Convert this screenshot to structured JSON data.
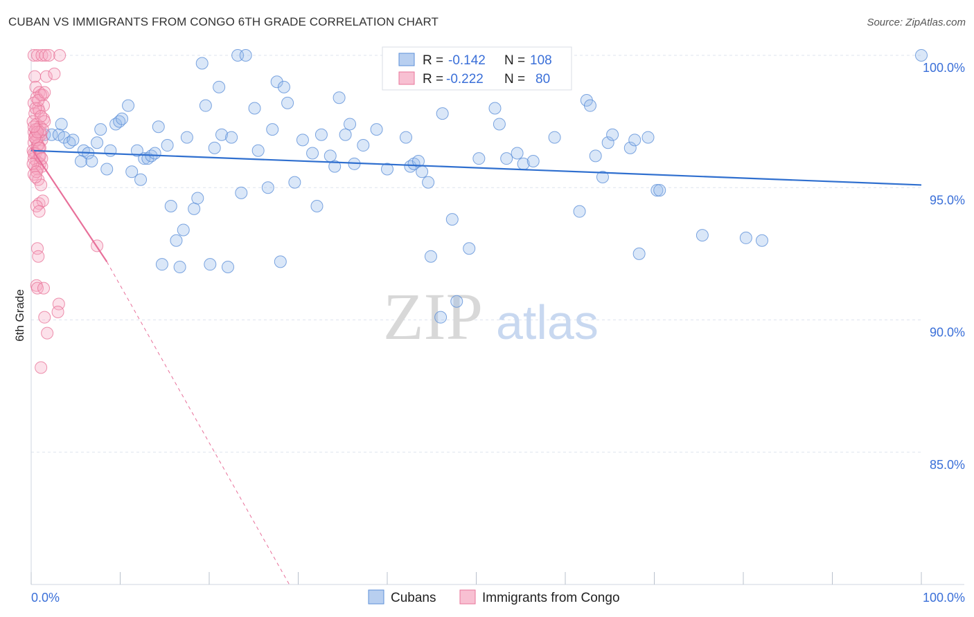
{
  "header": {
    "title": "CUBAN VS IMMIGRANTS FROM CONGO 6TH GRADE CORRELATION CHART",
    "source": "Source: ZipAtlas.com"
  },
  "watermark": {
    "zip": "ZIP",
    "atlas": "atlas"
  },
  "colors": {
    "cubans": "#5b8fd8",
    "cubans_fill": "rgba(150,185,235,0.35)",
    "congo": "#e8759a",
    "congo_fill": "rgba(245,170,195,0.35)",
    "blue_line": "#2f6fcf",
    "pink_line": "#e8709a",
    "grid": "#dde3ee",
    "tick_text": "#3a6fd8"
  },
  "chart_data": {
    "type": "scatter",
    "title": "CUBAN VS IMMIGRANTS FROM CONGO 6TH GRADE CORRELATION CHART",
    "xlabel": "",
    "ylabel": "6th Grade",
    "xlim": [
      0,
      100
    ],
    "ylim": [
      80,
      100
    ],
    "x_tick_labels": [
      "0.0%",
      "100.0%"
    ],
    "y_ticks": [
      85,
      90,
      95,
      100
    ],
    "y_tick_labels": [
      "85.0%",
      "90.0%",
      "95.0%",
      "100.0%"
    ],
    "grid": true,
    "legend_position": "top-center",
    "legend": [
      {
        "name": "Cubans",
        "r_label": "R =",
        "r": "-0.142",
        "n_label": "N =",
        "n": "108"
      },
      {
        "name": "Immigrants from Congo",
        "r_label": "R =",
        "r": "-0.222",
        "n_label": "N =",
        "n": "80"
      }
    ],
    "series": [
      {
        "name": "Cubans",
        "trend": {
          "x": [
            0,
            100
          ],
          "y": [
            96.4,
            95.1
          ],
          "style": "solid"
        },
        "points": [
          [
            1.5,
            97.0
          ],
          [
            2.3,
            97.0
          ],
          [
            3.1,
            97.0
          ],
          [
            3.4,
            97.4
          ],
          [
            3.7,
            96.9
          ],
          [
            4.3,
            96.7
          ],
          [
            4.7,
            96.8
          ],
          [
            5.6,
            96.0
          ],
          [
            5.9,
            96.4
          ],
          [
            6.4,
            96.3
          ],
          [
            6.8,
            96.0
          ],
          [
            7.4,
            96.7
          ],
          [
            7.8,
            97.2
          ],
          [
            8.5,
            95.7
          ],
          [
            8.9,
            96.4
          ],
          [
            9.5,
            97.4
          ],
          [
            9.9,
            97.5
          ],
          [
            10.2,
            97.6
          ],
          [
            10.9,
            98.1
          ],
          [
            11.3,
            95.6
          ],
          [
            11.9,
            96.4
          ],
          [
            12.3,
            95.3
          ],
          [
            12.7,
            96.1
          ],
          [
            13.1,
            96.1
          ],
          [
            13.5,
            96.2
          ],
          [
            13.9,
            96.3
          ],
          [
            14.3,
            97.3
          ],
          [
            14.7,
            92.1
          ],
          [
            15.3,
            96.6
          ],
          [
            15.7,
            94.3
          ],
          [
            16.3,
            93.0
          ],
          [
            16.7,
            92.0
          ],
          [
            17.1,
            93.4
          ],
          [
            17.5,
            96.9
          ],
          [
            18.3,
            94.2
          ],
          [
            18.7,
            94.6
          ],
          [
            19.2,
            99.7
          ],
          [
            19.6,
            98.1
          ],
          [
            20.1,
            92.1
          ],
          [
            20.6,
            96.5
          ],
          [
            21.1,
            98.8
          ],
          [
            21.4,
            97.0
          ],
          [
            22.1,
            92.0
          ],
          [
            22.5,
            96.9
          ],
          [
            23.2,
            100.0
          ],
          [
            23.6,
            94.8
          ],
          [
            24.1,
            100.0
          ],
          [
            25.1,
            98.0
          ],
          [
            25.5,
            96.4
          ],
          [
            26.6,
            95.0
          ],
          [
            27.1,
            97.2
          ],
          [
            27.6,
            99.0
          ],
          [
            28.0,
            92.2
          ],
          [
            28.4,
            98.8
          ],
          [
            28.8,
            98.2
          ],
          [
            29.6,
            95.2
          ],
          [
            30.5,
            96.8
          ],
          [
            31.6,
            96.3
          ],
          [
            32.1,
            94.3
          ],
          [
            32.6,
            97.0
          ],
          [
            33.6,
            96.2
          ],
          [
            34.1,
            95.8
          ],
          [
            34.6,
            98.4
          ],
          [
            35.3,
            97.0
          ],
          [
            35.8,
            97.4
          ],
          [
            36.3,
            95.9
          ],
          [
            37.3,
            96.6
          ],
          [
            38.8,
            97.2
          ],
          [
            40.0,
            95.7
          ],
          [
            42.1,
            96.9
          ],
          [
            42.6,
            95.8
          ],
          [
            43.0,
            95.9
          ],
          [
            43.5,
            96.0
          ],
          [
            43.9,
            95.6
          ],
          [
            44.6,
            95.2
          ],
          [
            44.9,
            92.4
          ],
          [
            46.0,
            90.1
          ],
          [
            46.2,
            97.8
          ],
          [
            47.3,
            93.8
          ],
          [
            47.8,
            90.7
          ],
          [
            49.2,
            92.7
          ],
          [
            50.3,
            96.1
          ],
          [
            52.1,
            98.0
          ],
          [
            52.6,
            97.4
          ],
          [
            53.4,
            96.1
          ],
          [
            54.6,
            96.3
          ],
          [
            55.3,
            95.9
          ],
          [
            56.4,
            96.0
          ],
          [
            58.8,
            96.9
          ],
          [
            61.6,
            94.1
          ],
          [
            62.4,
            98.3
          ],
          [
            62.8,
            98.1
          ],
          [
            63.4,
            96.2
          ],
          [
            64.2,
            95.4
          ],
          [
            64.8,
            96.7
          ],
          [
            65.3,
            97.0
          ],
          [
            67.3,
            96.5
          ],
          [
            67.8,
            96.8
          ],
          [
            68.3,
            92.5
          ],
          [
            69.3,
            96.9
          ],
          [
            70.3,
            94.9
          ],
          [
            70.6,
            94.9
          ],
          [
            75.4,
            93.2
          ],
          [
            80.3,
            93.1
          ],
          [
            82.1,
            93.0
          ],
          [
            100.0,
            100.0
          ]
        ]
      },
      {
        "name": "Immigrants from Congo",
        "trend": {
          "x": [
            0,
            8.5
          ],
          "y": [
            96.5,
            92.2
          ],
          "style": "solid",
          "extended_x": [
            8.5,
            29.0
          ],
          "extended_y": [
            92.2,
            80.0
          ],
          "extended_style": "dashed"
        },
        "points": [
          [
            0.3,
            100.0
          ],
          [
            0.7,
            100.0
          ],
          [
            1.2,
            100.0
          ],
          [
            1.6,
            100.0
          ],
          [
            2.0,
            100.0
          ],
          [
            3.2,
            100.0
          ],
          [
            0.4,
            99.2
          ],
          [
            1.7,
            99.2
          ],
          [
            2.6,
            99.3
          ],
          [
            0.5,
            98.8
          ],
          [
            0.9,
            98.6
          ],
          [
            1.3,
            98.5
          ],
          [
            0.6,
            98.4
          ],
          [
            1.1,
            98.5
          ],
          [
            0.3,
            98.2
          ],
          [
            0.8,
            98.0
          ],
          [
            1.4,
            98.1
          ],
          [
            0.4,
            97.8
          ],
          [
            0.9,
            97.9
          ],
          [
            1.4,
            97.6
          ],
          [
            0.2,
            97.5
          ],
          [
            0.6,
            97.4
          ],
          [
            1.0,
            97.3
          ],
          [
            1.5,
            97.5
          ],
          [
            0.3,
            97.1
          ],
          [
            0.7,
            97.2
          ],
          [
            1.1,
            97.0
          ],
          [
            0.4,
            96.9
          ],
          [
            0.8,
            96.9
          ],
          [
            1.2,
            96.8
          ],
          [
            0.3,
            96.7
          ],
          [
            0.7,
            96.6
          ],
          [
            1.0,
            96.5
          ],
          [
            0.2,
            96.4
          ],
          [
            0.5,
            96.3
          ],
          [
            0.9,
            96.2
          ],
          [
            0.3,
            96.1
          ],
          [
            0.6,
            96.0
          ],
          [
            1.0,
            95.9
          ],
          [
            0.4,
            95.8
          ],
          [
            0.7,
            95.7
          ],
          [
            1.2,
            95.8
          ],
          [
            0.3,
            95.5
          ],
          [
            0.8,
            95.3
          ],
          [
            1.1,
            95.1
          ],
          [
            0.9,
            94.4
          ],
          [
            1.3,
            94.5
          ],
          [
            0.6,
            94.3
          ],
          [
            0.9,
            94.1
          ],
          [
            0.7,
            92.7
          ],
          [
            7.4,
            92.8
          ],
          [
            0.8,
            92.4
          ],
          [
            0.6,
            91.3
          ],
          [
            0.7,
            91.2
          ],
          [
            1.4,
            91.2
          ],
          [
            3.1,
            90.6
          ],
          [
            3.0,
            90.3
          ],
          [
            1.5,
            90.1
          ],
          [
            1.8,
            89.5
          ],
          [
            1.1,
            88.2
          ],
          [
            0.5,
            97.0
          ],
          [
            0.8,
            96.6
          ],
          [
            0.5,
            97.2
          ],
          [
            1.0,
            97.1
          ],
          [
            0.6,
            96.8
          ],
          [
            0.3,
            96.3
          ],
          [
            0.9,
            96.5
          ],
          [
            1.3,
            97.2
          ],
          [
            0.5,
            98.0
          ],
          [
            0.4,
            96.9
          ],
          [
            0.7,
            97.1
          ],
          [
            0.2,
            95.9
          ],
          [
            1.0,
            96.2
          ],
          [
            0.6,
            95.6
          ],
          [
            1.2,
            96.1
          ],
          [
            0.3,
            97.3
          ],
          [
            0.8,
            98.3
          ],
          [
            1.5,
            98.6
          ],
          [
            0.5,
            95.4
          ],
          [
            1.1,
            97.7
          ]
        ]
      }
    ]
  }
}
